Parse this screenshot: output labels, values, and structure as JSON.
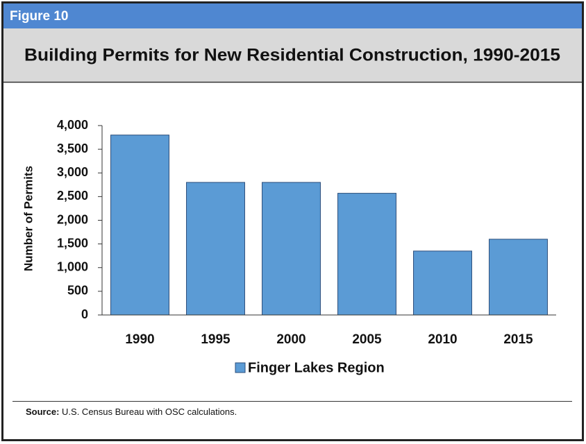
{
  "figure_label": "Figure 10",
  "chart_data": {
    "type": "bar",
    "title": "Building Permits for New Residential Construction, 1990-2015",
    "y_label": "Number of Permits",
    "categories": [
      "1990",
      "1995",
      "2000",
      "2005",
      "2010",
      "2015"
    ],
    "series": [
      {
        "name": "Finger Lakes Region",
        "color": "#5b9bd5",
        "values": [
          3800,
          2800,
          2800,
          2570,
          1350,
          1600
        ]
      }
    ],
    "ylim": [
      0,
      4000
    ],
    "yticks": [
      0,
      500,
      {
        "value": 1000,
        "label": "1,000"
      },
      {
        "value": 1500,
        "label": "1,500"
      },
      {
        "value": 2000,
        "label": "2,000"
      },
      {
        "value": 2500,
        "label": "2,500"
      },
      {
        "value": 3000,
        "label": "3,000"
      },
      {
        "value": 3500,
        "label": "3,500"
      },
      {
        "value": 4000,
        "label": "4,000"
      }
    ],
    "grid": false,
    "legend": "bottom"
  },
  "source": {
    "label": "Source:",
    "text": "U.S. Census Bureau with OSC calculations."
  }
}
